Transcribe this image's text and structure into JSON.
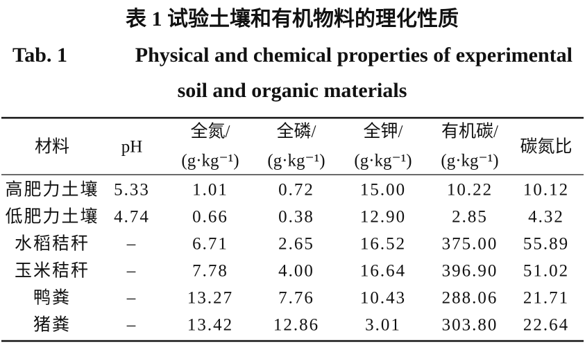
{
  "caption": {
    "zh": "表 1   试验土壤和有机物料的理化性质",
    "en_label": "Tab. 1",
    "en_line1": "Physical and chemical properties of experimental",
    "en_line2": "soil and organic materials"
  },
  "table": {
    "header": [
      {
        "name": "材料"
      },
      {
        "name": "pH"
      },
      {
        "name": "全氮/",
        "unit": "(g·kg⁻¹)"
      },
      {
        "name": "全磷/",
        "unit": "(g·kg⁻¹)"
      },
      {
        "name": "全钾/",
        "unit": "(g·kg⁻¹)"
      },
      {
        "name": "有机碳/",
        "unit": "(g·kg⁻¹)"
      },
      {
        "name": "碳氮比"
      }
    ],
    "rows": [
      [
        "高肥力土壤",
        "5.33",
        "1.01",
        "0.72",
        "15.00",
        "10.22",
        "10.12"
      ],
      [
        "低肥力土壤",
        "4.74",
        "0.66",
        "0.38",
        "12.90",
        "2.85",
        "4.32"
      ],
      [
        "水稻秸秆",
        "–",
        "6.71",
        "2.65",
        "16.52",
        "375.00",
        "55.89"
      ],
      [
        "玉米秸秆",
        "–",
        "7.78",
        "4.00",
        "16.64",
        "396.90",
        "51.02"
      ],
      [
        "鸭粪",
        "–",
        "13.27",
        "7.76",
        "10.43",
        "288.06",
        "21.71"
      ],
      [
        "猪粪",
        "–",
        "13.42",
        "12.86",
        "3.01",
        "303.80",
        "22.64"
      ]
    ]
  }
}
